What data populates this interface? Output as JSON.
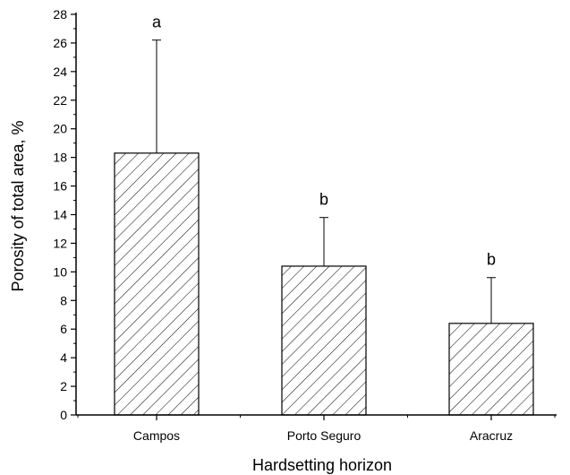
{
  "chart_data": {
    "type": "bar",
    "categories": [
      "Campos",
      "Porto Seguro",
      "Aracruz"
    ],
    "values": [
      18.3,
      10.4,
      6.4
    ],
    "error_upper": [
      26.2,
      13.8,
      9.6
    ],
    "significance_labels": [
      "a",
      "b",
      "b"
    ],
    "xlabel": "Hardsetting horizon",
    "ylabel": "Porosity of total area, %",
    "ylim": [
      0,
      28
    ],
    "yticks": [
      0,
      2,
      4,
      6,
      8,
      10,
      12,
      14,
      16,
      18,
      20,
      22,
      24,
      26,
      28
    ],
    "grid": false,
    "bar_fill": "hatched",
    "bar_color": "#000000"
  }
}
